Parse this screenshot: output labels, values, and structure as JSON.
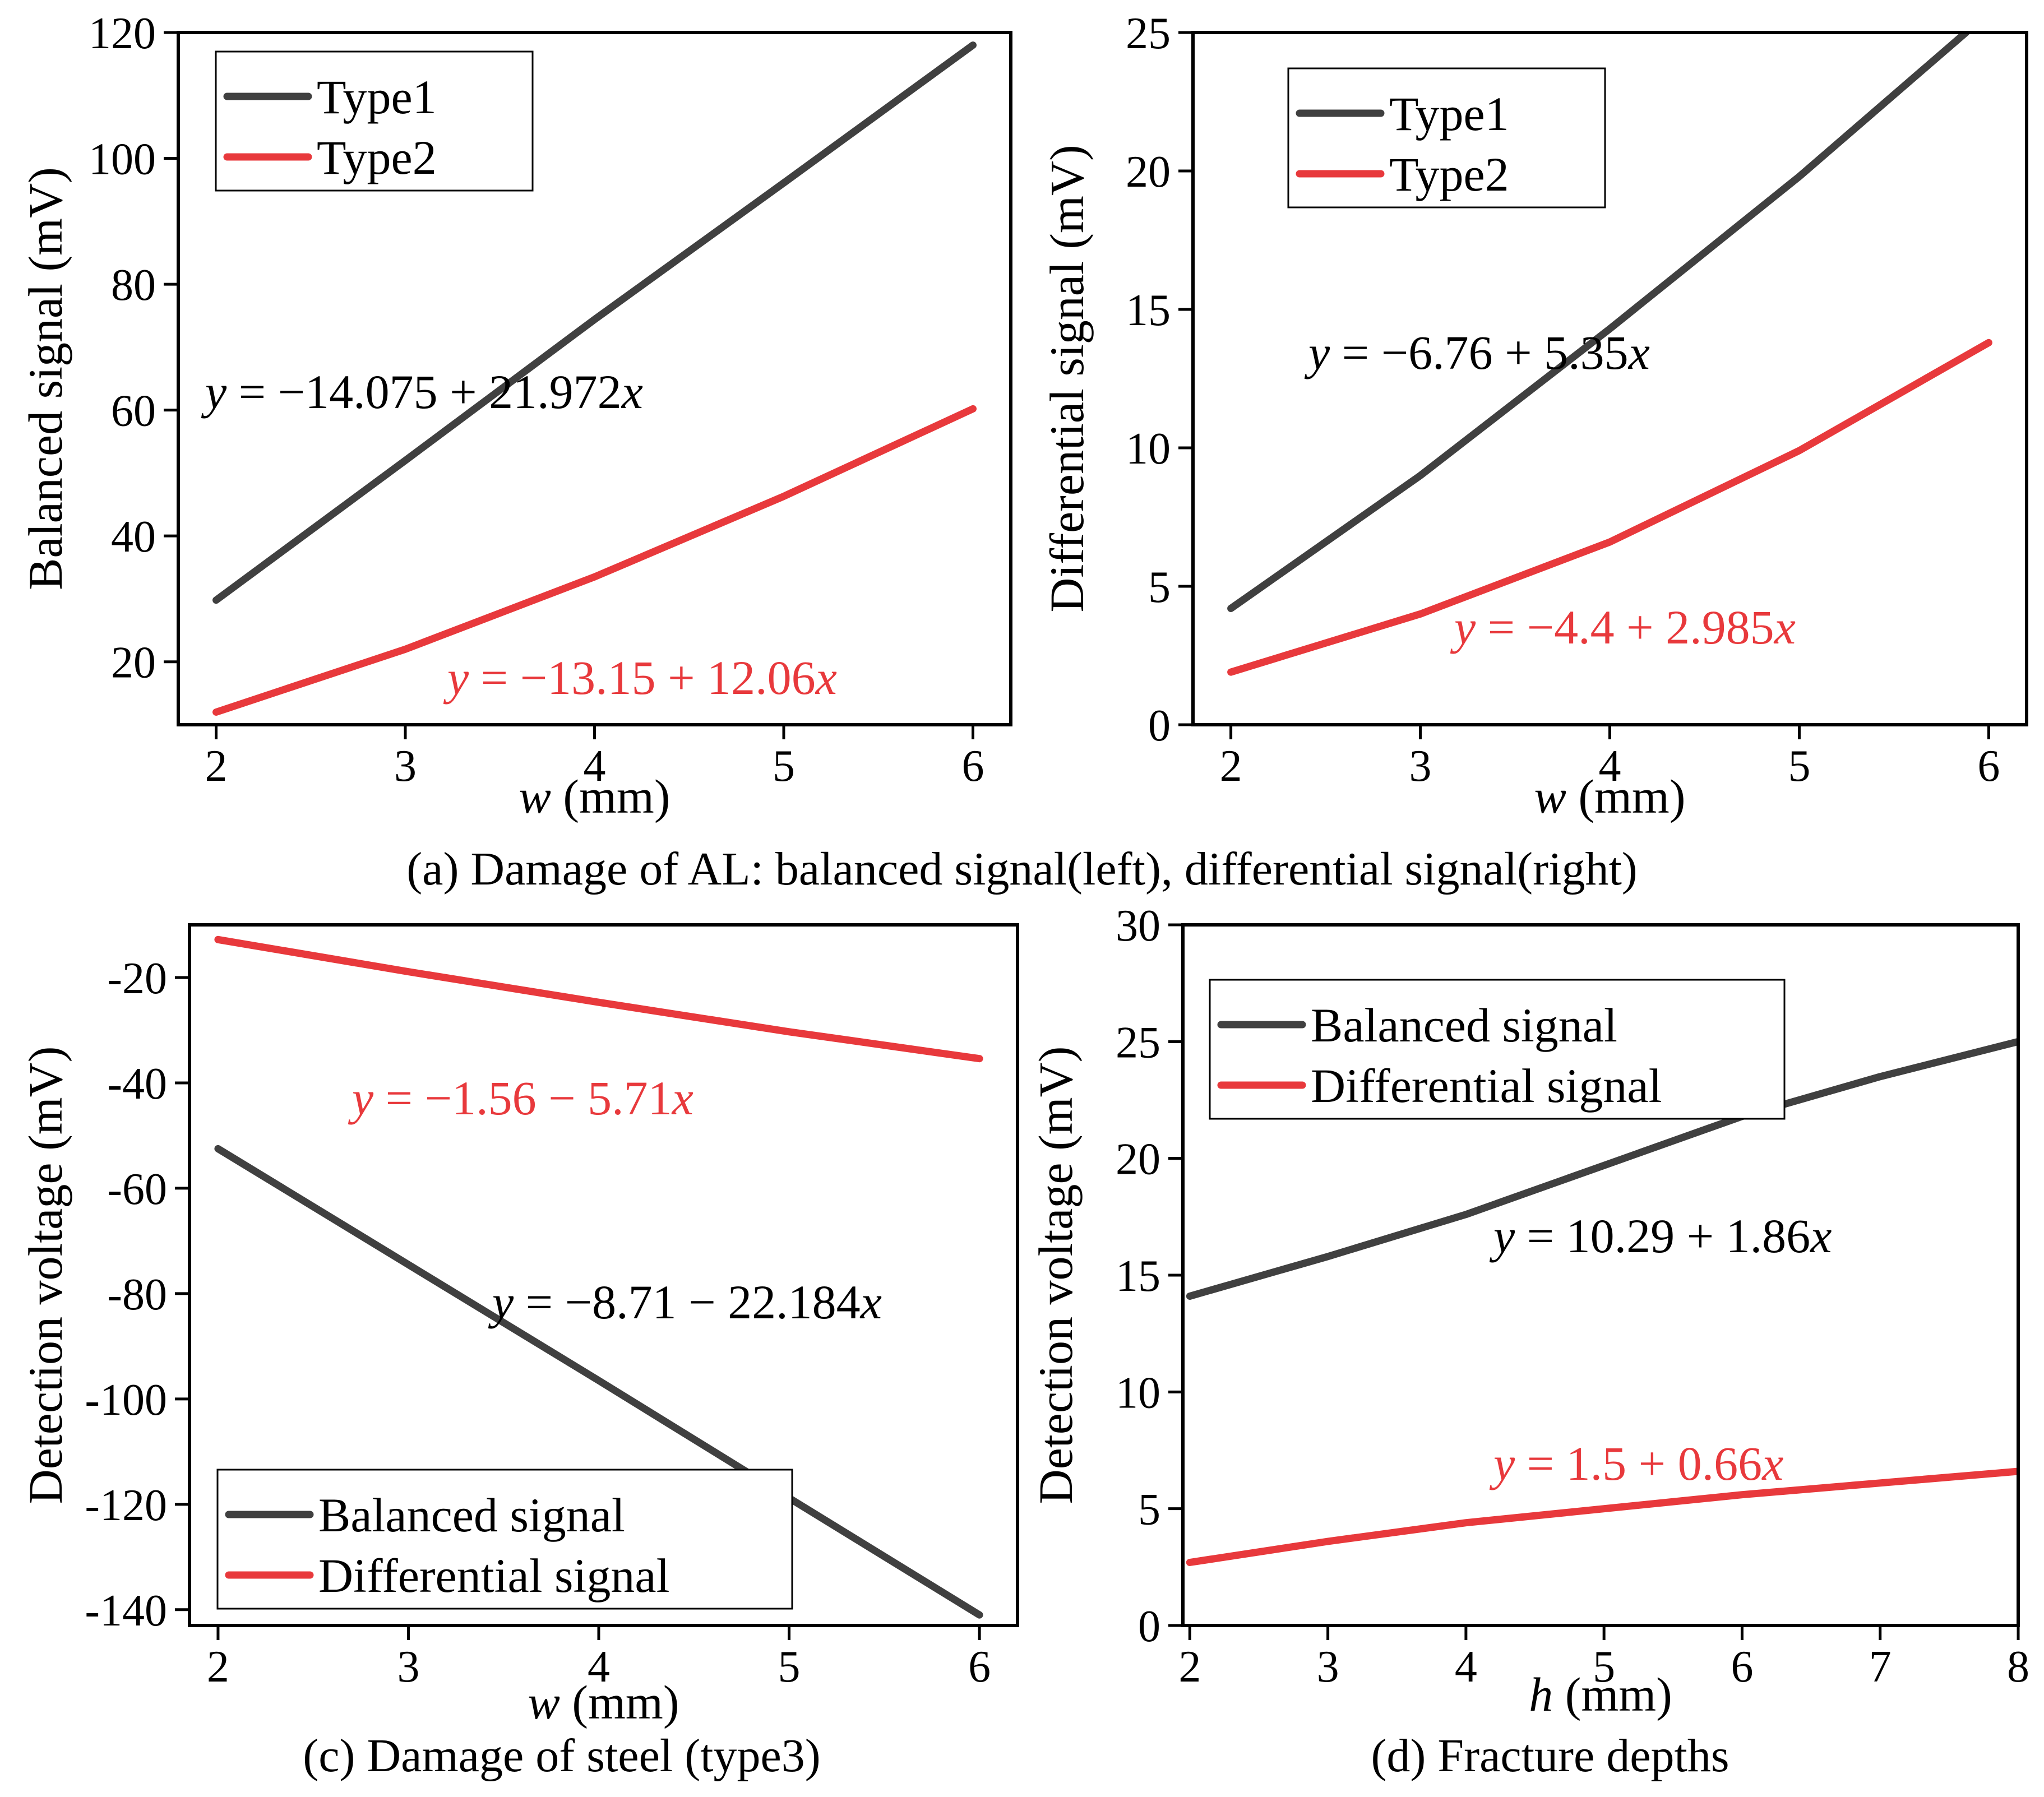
{
  "colors": {
    "black_series": "#404040",
    "red_series": "#e8393c"
  },
  "captions": {
    "a": "(a) Damage of AL: balanced signal(left), differential signal(right)",
    "c": "(c) Damage of steel (type3)",
    "d": "(d) Fracture depths"
  },
  "chart_data": [
    {
      "id": "a_left",
      "type": "line",
      "xlabel_var": "w",
      "xlabel_unit": " (mm)",
      "ylabel": "Balanced signal (mV)",
      "xlim": [
        1.8,
        6.2
      ],
      "ylim": [
        10,
        120
      ],
      "xticks": [
        2,
        3,
        4,
        5,
        6
      ],
      "yticks": [
        20,
        40,
        60,
        80,
        100,
        120
      ],
      "legend": {
        "position": "top-left"
      },
      "series": [
        {
          "name": "Type1",
          "color": "#404040",
          "x": [
            2,
            3,
            4,
            5,
            6
          ],
          "y": [
            29.8,
            52.0,
            74.4,
            96.1,
            118.0
          ],
          "equation": "y = −14.075 + 21.972x"
        },
        {
          "name": "Type2",
          "color": "#e8393c",
          "x": [
            2,
            3,
            4,
            5,
            6
          ],
          "y": [
            12.0,
            22.0,
            33.5,
            46.3,
            60.2
          ],
          "equation": "y = −13.15 + 12.06x"
        }
      ]
    },
    {
      "id": "a_right",
      "type": "line",
      "xlabel_var": "w",
      "xlabel_unit": " (mm)",
      "ylabel": "Differential signal (mV)",
      "xlim": [
        1.8,
        6.2
      ],
      "ylim": [
        0,
        25
      ],
      "xticks": [
        2,
        3,
        4,
        5,
        6
      ],
      "yticks": [
        0,
        5,
        10,
        15,
        20,
        25
      ],
      "legend": {
        "position": "top-right"
      },
      "series": [
        {
          "name": "Type1",
          "color": "#404040",
          "x": [
            2,
            3,
            4,
            5,
            5.88
          ],
          "y": [
            4.2,
            9.0,
            14.3,
            19.8,
            25.0
          ],
          "equation": "y = −6.76 + 5.35x"
        },
        {
          "name": "Type2",
          "color": "#e8393c",
          "x": [
            2,
            3,
            4,
            5,
            6
          ],
          "y": [
            1.9,
            4.0,
            6.6,
            9.9,
            13.8
          ],
          "equation": "y = −4.4 + 2.985x"
        }
      ]
    },
    {
      "id": "c",
      "type": "line",
      "xlabel_var": "w",
      "xlabel_unit": " (mm)",
      "ylabel": "Detection voltage (mV)",
      "xlim": [
        1.85,
        6.2
      ],
      "ylim": [
        -143,
        -10
      ],
      "xticks": [
        2,
        3,
        4,
        5,
        6
      ],
      "yticks": [
        -140,
        -120,
        -100,
        -80,
        -60,
        -40,
        -20
      ],
      "legend": {
        "position": "bottom-left"
      },
      "series": [
        {
          "name": "Balanced signal",
          "color": "#404040",
          "x": [
            2,
            3,
            4,
            5,
            6
          ],
          "y": [
            -52.5,
            -74.5,
            -96.5,
            -118.8,
            -141.0
          ],
          "equation": "y = −8.71 − 22.184x"
        },
        {
          "name": "Differential signal",
          "color": "#e8393c",
          "x": [
            2,
            3,
            4,
            5,
            6
          ],
          "y": [
            -12.8,
            -18.9,
            -24.7,
            -30.3,
            -35.4
          ],
          "equation": "y = −1.56 − 5.71x"
        }
      ]
    },
    {
      "id": "d",
      "type": "line",
      "xlabel_var": "h",
      "xlabel_unit": " (mm)",
      "ylabel": "Detection voltage (mV)",
      "xlim": [
        1.95,
        8.0
      ],
      "ylim": [
        0,
        30
      ],
      "xticks": [
        2,
        3,
        4,
        5,
        6,
        7,
        8
      ],
      "yticks": [
        0,
        5,
        10,
        15,
        20,
        25,
        30
      ],
      "legend": {
        "position": "top-left"
      },
      "series": [
        {
          "name": "Balanced signal",
          "color": "#404040",
          "x": [
            2,
            3,
            4,
            5,
            6,
            7,
            8
          ],
          "y": [
            14.1,
            15.8,
            17.6,
            19.7,
            21.8,
            23.5,
            25.0
          ],
          "equation": "y = 10.29 + 1.86x"
        },
        {
          "name": "Differential signal",
          "color": "#e8393c",
          "x": [
            2,
            3,
            4,
            5,
            6,
            7,
            8
          ],
          "y": [
            2.7,
            3.6,
            4.4,
            5.0,
            5.6,
            6.1,
            6.6
          ],
          "equation": "y = 1.5 + 0.66x"
        }
      ]
    }
  ]
}
